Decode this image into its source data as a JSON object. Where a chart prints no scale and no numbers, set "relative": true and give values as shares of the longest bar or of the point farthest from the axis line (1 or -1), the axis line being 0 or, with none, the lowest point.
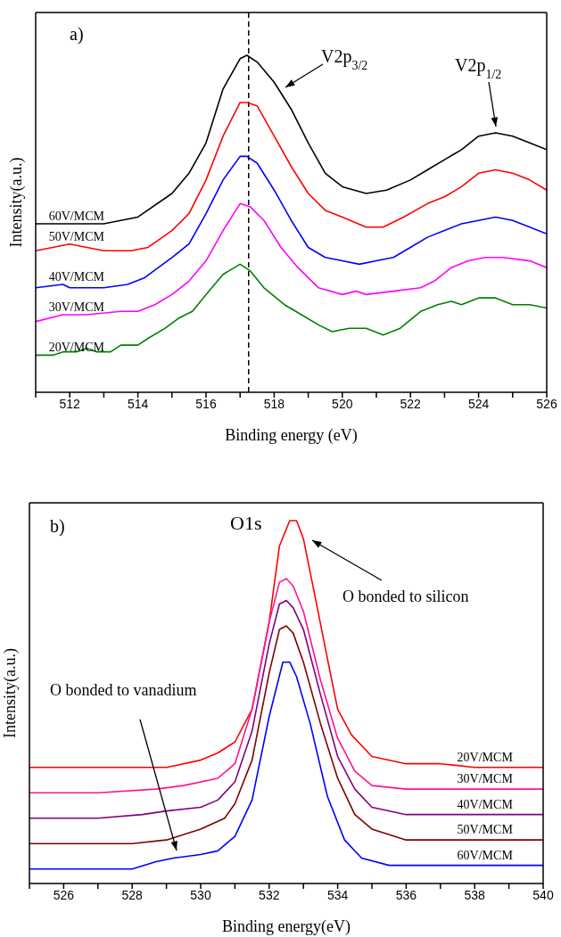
{
  "chart_data": [
    {
      "type": "line",
      "relative": true,
      "xlabel": "Binding energy (eV)",
      "ylabel": "Intensity(a.u.)",
      "xlim": [
        511,
        526
      ],
      "xticks": [
        {
          "value": 511,
          "label": null
        },
        512,
        {
          "value": 513,
          "label": null
        },
        514,
        {
          "value": 515,
          "label": null
        },
        516,
        {
          "value": 517,
          "label": null
        },
        518,
        {
          "value": 519,
          "label": null
        },
        520,
        {
          "value": 521,
          "label": null
        },
        522,
        {
          "value": 523,
          "label": null
        },
        524,
        {
          "value": 525,
          "label": null
        },
        526
      ],
      "annotations": [
        "a)",
        "V2p$_{3/2}$",
        "V2p$_{1/2}$"
      ],
      "ref_lines": [
        {
          "axis": "x",
          "value": 517.25,
          "color": "#000000",
          "line_style": "dashed"
        }
      ],
      "marker": "none",
      "line_style": "solid",
      "series": [
        {
          "name": "60V/MCM",
          "color": "#000000",
          "x": [
            511,
            512,
            513,
            514,
            515,
            515.5,
            516,
            516.5,
            517,
            517.2,
            517.5,
            518,
            518.5,
            519,
            519.5,
            520,
            520.7,
            521.3,
            522,
            522.5,
            523,
            523.5,
            524,
            524.5,
            525,
            525.5,
            526
          ],
          "values": [
            0.5,
            0.5,
            0.5,
            0.52,
            0.59,
            0.65,
            0.74,
            0.9,
            0.99,
            1.0,
            0.98,
            0.92,
            0.84,
            0.74,
            0.65,
            0.61,
            0.59,
            0.6,
            0.63,
            0.66,
            0.69,
            0.72,
            0.76,
            0.77,
            0.76,
            0.74,
            0.72
          ]
        },
        {
          "name": "50V/MCM",
          "color": "#ff0000",
          "x": [
            511,
            512,
            512.5,
            513,
            513.8,
            514.3,
            515,
            515.5,
            516,
            516.5,
            517,
            517.2,
            517.5,
            518,
            518.5,
            519,
            519.5,
            520,
            520.7,
            521.2,
            521.8,
            522.5,
            523,
            523.5,
            524,
            524.5,
            525,
            525.5,
            526
          ],
          "values": [
            0.42,
            0.44,
            0.43,
            0.42,
            0.42,
            0.43,
            0.48,
            0.53,
            0.63,
            0.76,
            0.86,
            0.86,
            0.85,
            0.76,
            0.67,
            0.59,
            0.54,
            0.52,
            0.49,
            0.49,
            0.52,
            0.56,
            0.58,
            0.61,
            0.65,
            0.66,
            0.65,
            0.63,
            0.6
          ]
        },
        {
          "name": "40V/MCM",
          "color": "#0000ff",
          "x": [
            511,
            511.8,
            512,
            513,
            513.7,
            514.2,
            515,
            515.5,
            516,
            516.5,
            517,
            517.2,
            517.5,
            518,
            518.5,
            519,
            519.5,
            520,
            520.5,
            521,
            521.5,
            522,
            522.5,
            523,
            523.5,
            524,
            524.5,
            525,
            525.5,
            526
          ],
          "values": [
            0.31,
            0.32,
            0.31,
            0.31,
            0.32,
            0.34,
            0.4,
            0.44,
            0.53,
            0.63,
            0.7,
            0.7,
            0.68,
            0.6,
            0.51,
            0.43,
            0.4,
            0.39,
            0.38,
            0.39,
            0.4,
            0.43,
            0.46,
            0.48,
            0.5,
            0.51,
            0.52,
            0.51,
            0.49,
            0.47
          ]
        },
        {
          "name": "30V/MCM",
          "color": "#ff00ff",
          "x": [
            511,
            511.8,
            512.5,
            513.5,
            514,
            514.5,
            515,
            515.5,
            516,
            516.5,
            517,
            517.3,
            517.7,
            518.2,
            518.7,
            519.3,
            520,
            520.4,
            520.7,
            521.5,
            522.3,
            522.7,
            523.2,
            523.7,
            524.2,
            524.7,
            525.5,
            526
          ],
          "values": [
            0.21,
            0.23,
            0.23,
            0.24,
            0.24,
            0.26,
            0.29,
            0.33,
            0.39,
            0.48,
            0.56,
            0.55,
            0.51,
            0.43,
            0.37,
            0.31,
            0.29,
            0.3,
            0.29,
            0.3,
            0.31,
            0.33,
            0.37,
            0.39,
            0.4,
            0.4,
            0.39,
            0.37
          ]
        },
        {
          "name": "20V/MCM",
          "color": "#008000",
          "x": [
            511,
            511.5,
            511.8,
            512.2,
            512.5,
            512.8,
            513.2,
            513.5,
            514,
            514.3,
            514.8,
            515.2,
            515.6,
            516,
            516.5,
            517,
            517.3,
            517.7,
            518.3,
            518.8,
            519.3,
            519.7,
            520.2,
            520.7,
            521.2,
            521.7,
            522.3,
            522.8,
            523.2,
            523.5,
            524,
            524.5,
            525,
            525.5,
            526
          ],
          "values": [
            0.11,
            0.11,
            0.12,
            0.12,
            0.13,
            0.12,
            0.12,
            0.14,
            0.14,
            0.16,
            0.19,
            0.22,
            0.24,
            0.29,
            0.35,
            0.38,
            0.36,
            0.31,
            0.26,
            0.23,
            0.2,
            0.18,
            0.19,
            0.19,
            0.17,
            0.19,
            0.24,
            0.26,
            0.27,
            0.26,
            0.28,
            0.28,
            0.26,
            0.26,
            0.25
          ]
        }
      ]
    },
    {
      "type": "line",
      "relative": true,
      "xlabel": "Binding energy(eV)",
      "ylabel": "Intensity(a.u.)",
      "xlim": [
        525,
        540
      ],
      "xticks": [
        {
          "value": 525,
          "label": null
        },
        526,
        {
          "value": 527,
          "label": null
        },
        528,
        {
          "value": 529,
          "label": null
        },
        530,
        {
          "value": 531,
          "label": null
        },
        532,
        {
          "value": 533,
          "label": null
        },
        534,
        {
          "value": 535,
          "label": null
        },
        536,
        {
          "value": 537,
          "label": null
        },
        538,
        {
          "value": 539,
          "label": null
        },
        540
      ],
      "annotations": [
        "b)",
        "O1s",
        "O bonded to silicon",
        "O bonded to vanadium"
      ],
      "marker": "none",
      "line_style": "solid",
      "series": [
        {
          "name": "20V/MCM",
          "color": "#ff0000",
          "x": [
            525,
            527,
            529,
            530,
            530.5,
            531,
            531.5,
            532,
            532.3,
            532.6,
            532.8,
            533,
            533.3,
            533.7,
            534,
            534.4,
            535,
            536,
            537,
            538,
            540
          ],
          "values": [
            0.32,
            0.32,
            0.32,
            0.34,
            0.36,
            0.39,
            0.48,
            0.72,
            0.93,
            1.0,
            1.0,
            0.95,
            0.81,
            0.62,
            0.48,
            0.41,
            0.35,
            0.33,
            0.33,
            0.32,
            0.32
          ]
        },
        {
          "name": "30V/MCM",
          "color": "#ff1493",
          "x": [
            525,
            527,
            528.7,
            529.5,
            530.5,
            531,
            531.5,
            532,
            532.3,
            532.5,
            532.7,
            533,
            533.5,
            534,
            534.5,
            535,
            536,
            538,
            540
          ],
          "values": [
            0.25,
            0.25,
            0.26,
            0.27,
            0.29,
            0.33,
            0.48,
            0.72,
            0.83,
            0.84,
            0.82,
            0.75,
            0.56,
            0.4,
            0.31,
            0.27,
            0.26,
            0.26,
            0.26
          ]
        },
        {
          "name": "40V/MCM",
          "color": "#800080",
          "x": [
            525,
            527,
            528.3,
            529,
            530,
            530.5,
            531,
            531.5,
            532,
            532.3,
            532.5,
            532.7,
            533,
            533.5,
            534,
            534.5,
            535,
            536,
            538,
            540
          ],
          "values": [
            0.18,
            0.18,
            0.19,
            0.2,
            0.21,
            0.23,
            0.28,
            0.42,
            0.66,
            0.77,
            0.78,
            0.76,
            0.7,
            0.52,
            0.35,
            0.26,
            0.21,
            0.19,
            0.19,
            0.19
          ]
        },
        {
          "name": "50V/MCM",
          "color": "#800000",
          "x": [
            525,
            527,
            528,
            529,
            530,
            530.7,
            531,
            531.5,
            532,
            532.3,
            532.5,
            532.7,
            533,
            533.5,
            534,
            534.5,
            535,
            536,
            538,
            540
          ],
          "values": [
            0.11,
            0.11,
            0.11,
            0.12,
            0.15,
            0.18,
            0.22,
            0.34,
            0.58,
            0.7,
            0.71,
            0.69,
            0.61,
            0.44,
            0.29,
            0.19,
            0.15,
            0.12,
            0.12,
            0.12
          ]
        },
        {
          "name": "60V/MCM",
          "color": "#0000ff",
          "x": [
            525,
            527,
            528,
            528.7,
            529.2,
            530,
            530.5,
            531,
            531.5,
            532,
            532.4,
            532.6,
            532.8,
            533.2,
            533.7,
            534.2,
            534.7,
            535.5,
            537,
            540
          ],
          "values": [
            0.04,
            0.04,
            0.04,
            0.06,
            0.07,
            0.08,
            0.09,
            0.13,
            0.23,
            0.46,
            0.61,
            0.61,
            0.57,
            0.44,
            0.24,
            0.12,
            0.07,
            0.05,
            0.05,
            0.05
          ]
        }
      ]
    }
  ]
}
